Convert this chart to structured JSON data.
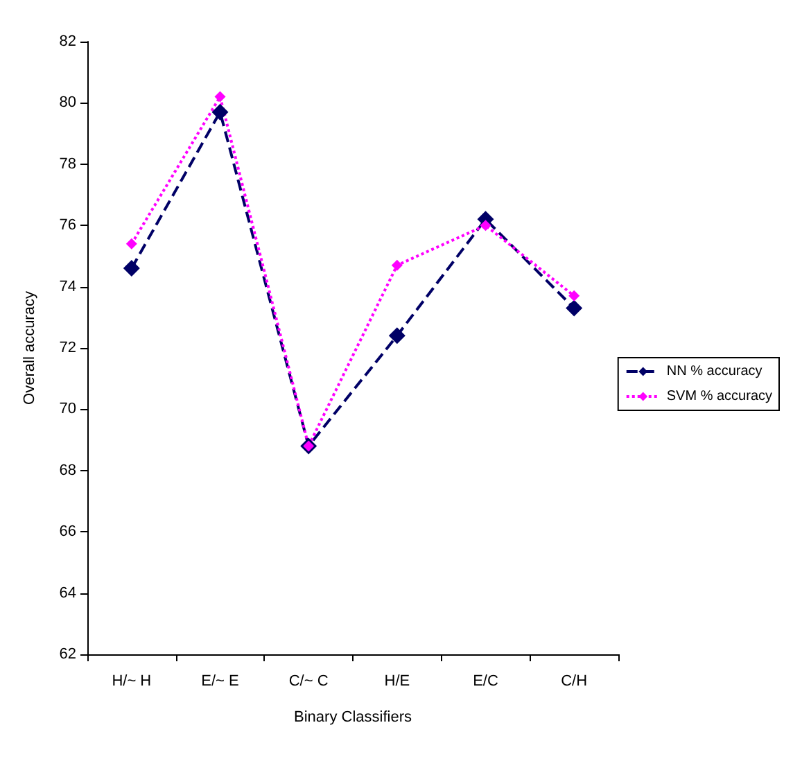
{
  "chart_data": {
    "type": "line",
    "xlabel": "Binary Classifiers",
    "ylabel": "Overall accuracy",
    "categories": [
      "H/~ H",
      "E/~ E",
      "C/~ C",
      "H/E",
      "E/C",
      "C/H"
    ],
    "series": [
      {
        "name": "NN % accuracy",
        "color": "#000066",
        "line_style": "dashed",
        "values": [
          74.6,
          79.7,
          68.8,
          72.4,
          76.2,
          73.3
        ]
      },
      {
        "name": "SVM % accuracy",
        "color": "#ff00ff",
        "line_style": "dotted",
        "values": [
          75.4,
          80.2,
          68.8,
          74.7,
          76.0,
          73.7
        ]
      }
    ],
    "ylim": [
      62,
      82
    ],
    "yticks": [
      62,
      64,
      66,
      68,
      70,
      72,
      74,
      76,
      78,
      80,
      82
    ],
    "grid": false,
    "legend": "right",
    "marker": "diamond"
  }
}
